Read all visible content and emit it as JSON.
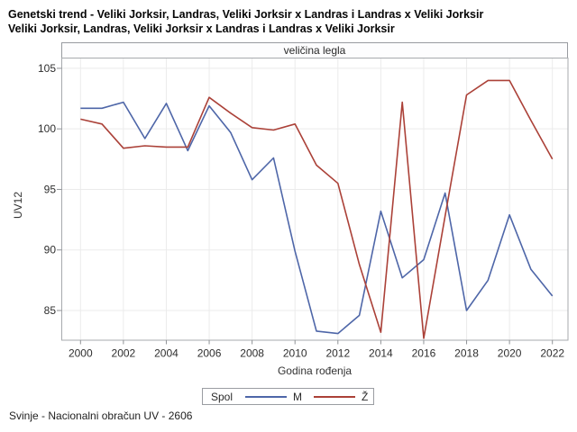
{
  "titles": {
    "line1": "Genetski trend - Veliki Jorksir, Landras, Veliki Jorksir x Landras i Landras x Veliki Jorksir",
    "line2": "Veliki Jorksir, Landras, Veliki Jorksir x Landras i Landras x Veliki Jorksir"
  },
  "footer": "Svinje - Nacionalni obračun UV - 2606",
  "legend": {
    "title": "Spol"
  },
  "colors": {
    "series_m": "#4e66a8",
    "series_z": "#ab4138",
    "grid": "#ebebeb",
    "frame": "#a7aaae",
    "tick": "#8f9296",
    "tick_text": "#2e2e2e"
  },
  "chart_data": {
    "type": "line",
    "title": "veličina legla",
    "xlabel": "Godina rođenja",
    "ylabel": "UV12",
    "x": [
      2000,
      2001,
      2002,
      2003,
      2004,
      2005,
      2006,
      2007,
      2008,
      2009,
      2010,
      2011,
      2012,
      2013,
      2014,
      2015,
      2016,
      2017,
      2018,
      2019,
      2020,
      2021,
      2022
    ],
    "series": [
      {
        "name": "M",
        "color": "#4e66a8",
        "values": [
          101.7,
          101.7,
          102.2,
          99.2,
          102.1,
          98.2,
          101.9,
          99.7,
          95.8,
          97.6,
          89.9,
          83.3,
          83.1,
          84.6,
          93.2,
          87.7,
          89.2,
          94.7,
          85.0,
          87.5,
          92.9,
          88.4,
          86.2
        ]
      },
      {
        "name": "Ž",
        "color": "#ab4138",
        "values": [
          100.8,
          100.4,
          98.4,
          98.6,
          98.5,
          98.5,
          102.6,
          101.3,
          100.1,
          99.9,
          100.4,
          97.0,
          95.5,
          88.8,
          83.2,
          102.2,
          82.7,
          92.8,
          102.8,
          104.0,
          104.0,
          100.7,
          97.5
        ]
      }
    ],
    "xticks": [
      2000,
      2002,
      2004,
      2006,
      2008,
      2010,
      2012,
      2014,
      2016,
      2018,
      2020,
      2022
    ],
    "yticks": [
      85,
      90,
      95,
      100,
      105
    ],
    "xlim": [
      1999.1,
      2022.7
    ],
    "ylim": [
      82.5,
      105.9
    ],
    "grid": true,
    "legend_position": "bottom"
  }
}
